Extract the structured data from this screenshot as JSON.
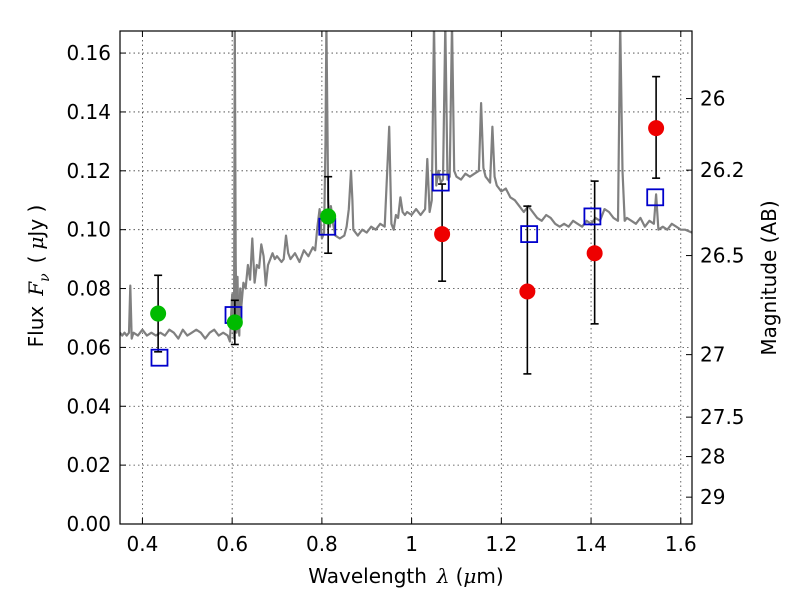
{
  "chart_data": {
    "type": "scatter",
    "title": "",
    "xlabel_text": "Wavelength",
    "xlabel_symbol": "λ",
    "xlabel_unit_open": "(",
    "xlabel_unit_mu": "μ",
    "xlabel_unit_rest": "m)",
    "ylabel_text": "Flux",
    "ylabel_symbol": "F",
    "ylabel_subscript": "ν",
    "ylabel_unit_open": "(",
    "ylabel_unit_mu": "μ",
    "ylabel_unit_rest": "Jy )",
    "y2label": "Magnitude (AB)",
    "xlim": [
      0.35,
      1.625
    ],
    "ylim": [
      0.0,
      0.1675
    ],
    "grid": true,
    "x_ticks": [
      0.4,
      0.6,
      0.8,
      1.0,
      1.2,
      1.4,
      1.6
    ],
    "x_tick_labels": [
      "0.4",
      "0.6",
      "0.8",
      "1",
      "1.2",
      "1.4",
      "1.6"
    ],
    "y_ticks": [
      0.0,
      0.02,
      0.04,
      0.06,
      0.08,
      0.1,
      0.12,
      0.14,
      0.16
    ],
    "y_tick_labels": [
      "0.00",
      "0.02",
      "0.04",
      "0.06",
      "0.08",
      "0.10",
      "0.12",
      "0.14",
      "0.16"
    ],
    "y2_ticks": [
      26,
      26.2,
      26.5,
      27,
      27.5,
      28,
      29
    ],
    "y2_tick_labels": [
      "26",
      "26.2",
      "26.5",
      "27",
      "27.5",
      "28",
      "29"
    ],
    "colors": {
      "spectrum": "#808080",
      "green": "#00bb00",
      "red": "#ee0000",
      "square": "#0000cc",
      "errorbar": "#000000"
    },
    "spectrum": [
      [
        0.35,
        0.065
      ],
      [
        0.355,
        0.064
      ],
      [
        0.36,
        0.065
      ],
      [
        0.365,
        0.064
      ],
      [
        0.37,
        0.065
      ],
      [
        0.373,
        0.081
      ],
      [
        0.376,
        0.063
      ],
      [
        0.38,
        0.065
      ],
      [
        0.39,
        0.064
      ],
      [
        0.4,
        0.066
      ],
      [
        0.41,
        0.064
      ],
      [
        0.42,
        0.065
      ],
      [
        0.43,
        0.064
      ],
      [
        0.44,
        0.065
      ],
      [
        0.45,
        0.064
      ],
      [
        0.46,
        0.066
      ],
      [
        0.47,
        0.065
      ],
      [
        0.48,
        0.063
      ],
      [
        0.49,
        0.066
      ],
      [
        0.5,
        0.064
      ],
      [
        0.51,
        0.065
      ],
      [
        0.52,
        0.066
      ],
      [
        0.53,
        0.065
      ],
      [
        0.54,
        0.063
      ],
      [
        0.55,
        0.065
      ],
      [
        0.56,
        0.066
      ],
      [
        0.57,
        0.064
      ],
      [
        0.58,
        0.065
      ],
      [
        0.59,
        0.064
      ],
      [
        0.595,
        0.062
      ],
      [
        0.598,
        0.072
      ],
      [
        0.6,
        0.078
      ],
      [
        0.602,
        0.07
      ],
      [
        0.604,
        0.063
      ],
      [
        0.606,
        0.17
      ],
      [
        0.608,
        0.09
      ],
      [
        0.61,
        0.065
      ],
      [
        0.612,
        0.084
      ],
      [
        0.614,
        0.068
      ],
      [
        0.616,
        0.064
      ],
      [
        0.618,
        0.08
      ],
      [
        0.62,
        0.073
      ],
      [
        0.625,
        0.082
      ],
      [
        0.63,
        0.08
      ],
      [
        0.635,
        0.088
      ],
      [
        0.64,
        0.083
      ],
      [
        0.645,
        0.097
      ],
      [
        0.65,
        0.082
      ],
      [
        0.655,
        0.088
      ],
      [
        0.66,
        0.087
      ],
      [
        0.665,
        0.095
      ],
      [
        0.67,
        0.091
      ],
      [
        0.675,
        0.081
      ],
      [
        0.68,
        0.088
      ],
      [
        0.685,
        0.09
      ],
      [
        0.69,
        0.092
      ],
      [
        0.695,
        0.09
      ],
      [
        0.7,
        0.091
      ],
      [
        0.71,
        0.089
      ],
      [
        0.715,
        0.09
      ],
      [
        0.72,
        0.098
      ],
      [
        0.725,
        0.092
      ],
      [
        0.73,
        0.09
      ],
      [
        0.74,
        0.092
      ],
      [
        0.75,
        0.089
      ],
      [
        0.76,
        0.093
      ],
      [
        0.77,
        0.091
      ],
      [
        0.78,
        0.094
      ],
      [
        0.785,
        0.093
      ],
      [
        0.79,
        0.101
      ],
      [
        0.795,
        0.107
      ],
      [
        0.8,
        0.097
      ],
      [
        0.805,
        0.099
      ],
      [
        0.808,
        0.13
      ],
      [
        0.81,
        0.17
      ],
      [
        0.812,
        0.14
      ],
      [
        0.814,
        0.11
      ],
      [
        0.818,
        0.101
      ],
      [
        0.82,
        0.108
      ],
      [
        0.825,
        0.102
      ],
      [
        0.83,
        0.098
      ],
      [
        0.84,
        0.097
      ],
      [
        0.85,
        0.098
      ],
      [
        0.855,
        0.101
      ],
      [
        0.86,
        0.107
      ],
      [
        0.865,
        0.12
      ],
      [
        0.868,
        0.11
      ],
      [
        0.87,
        0.1
      ],
      [
        0.88,
        0.098
      ],
      [
        0.89,
        0.1
      ],
      [
        0.9,
        0.099
      ],
      [
        0.91,
        0.101
      ],
      [
        0.92,
        0.1
      ],
      [
        0.93,
        0.102
      ],
      [
        0.94,
        0.101
      ],
      [
        0.95,
        0.135
      ],
      [
        0.955,
        0.102
      ],
      [
        0.96,
        0.1
      ],
      [
        0.965,
        0.105
      ],
      [
        0.97,
        0.104
      ],
      [
        0.975,
        0.111
      ],
      [
        0.98,
        0.106
      ],
      [
        0.985,
        0.105
      ],
      [
        0.99,
        0.106
      ],
      [
        1.0,
        0.105
      ],
      [
        1.01,
        0.107
      ],
      [
        1.02,
        0.105
      ],
      [
        1.03,
        0.107
      ],
      [
        1.035,
        0.124
      ],
      [
        1.04,
        0.106
      ],
      [
        1.045,
        0.11
      ],
      [
        1.05,
        0.17
      ],
      [
        1.055,
        0.115
      ],
      [
        1.06,
        0.12
      ],
      [
        1.065,
        0.116
      ],
      [
        1.07,
        0.117
      ],
      [
        1.075,
        0.17
      ],
      [
        1.08,
        0.117
      ],
      [
        1.085,
        0.118
      ],
      [
        1.09,
        0.17
      ],
      [
        1.095,
        0.12
      ],
      [
        1.1,
        0.118
      ],
      [
        1.11,
        0.117
      ],
      [
        1.12,
        0.119
      ],
      [
        1.13,
        0.118
      ],
      [
        1.14,
        0.119
      ],
      [
        1.15,
        0.12
      ],
      [
        1.155,
        0.143
      ],
      [
        1.16,
        0.121
      ],
      [
        1.165,
        0.118
      ],
      [
        1.17,
        0.117
      ],
      [
        1.175,
        0.116
      ],
      [
        1.18,
        0.135
      ],
      [
        1.185,
        0.118
      ],
      [
        1.19,
        0.115
      ],
      [
        1.2,
        0.113
      ],
      [
        1.21,
        0.114
      ],
      [
        1.22,
        0.111
      ],
      [
        1.23,
        0.11
      ],
      [
        1.24,
        0.108
      ],
      [
        1.25,
        0.106
      ],
      [
        1.26,
        0.108
      ],
      [
        1.27,
        0.106
      ],
      [
        1.28,
        0.104
      ],
      [
        1.29,
        0.103
      ],
      [
        1.3,
        0.105
      ],
      [
        1.31,
        0.104
      ],
      [
        1.32,
        0.102
      ],
      [
        1.33,
        0.101
      ],
      [
        1.34,
        0.102
      ],
      [
        1.35,
        0.101
      ],
      [
        1.36,
        0.103
      ],
      [
        1.37,
        0.102
      ],
      [
        1.38,
        0.101
      ],
      [
        1.39,
        0.103
      ],
      [
        1.4,
        0.102
      ],
      [
        1.41,
        0.104
      ],
      [
        1.42,
        0.103
      ],
      [
        1.43,
        0.107
      ],
      [
        1.44,
        0.106
      ],
      [
        1.45,
        0.104
      ],
      [
        1.46,
        0.103
      ],
      [
        1.465,
        0.17
      ],
      [
        1.47,
        0.12
      ],
      [
        1.475,
        0.103
      ],
      [
        1.48,
        0.104
      ],
      [
        1.49,
        0.103
      ],
      [
        1.5,
        0.102
      ],
      [
        1.51,
        0.104
      ],
      [
        1.52,
        0.101
      ],
      [
        1.53,
        0.103
      ],
      [
        1.54,
        0.102
      ],
      [
        1.545,
        0.112
      ],
      [
        1.55,
        0.1
      ],
      [
        1.56,
        0.101
      ],
      [
        1.57,
        0.1
      ],
      [
        1.58,
        0.102
      ],
      [
        1.59,
        0.101
      ],
      [
        1.6,
        0.1
      ],
      [
        1.61,
        0.1
      ],
      [
        1.625,
        0.099
      ]
    ],
    "green_points": [
      {
        "x": 0.435,
        "y": 0.0715,
        "yerr_lo": 0.0585,
        "yerr_hi": 0.0845
      },
      {
        "x": 0.606,
        "y": 0.0685,
        "yerr_lo": 0.061,
        "yerr_hi": 0.076
      },
      {
        "x": 0.814,
        "y": 0.1045,
        "yerr_lo": 0.092,
        "yerr_hi": 0.118
      }
    ],
    "red_points": [
      {
        "x": 1.068,
        "y": 0.0985,
        "yerr_lo": 0.0825,
        "yerr_hi": 0.1155
      },
      {
        "x": 1.258,
        "y": 0.079,
        "yerr_lo": 0.051,
        "yerr_hi": 0.108
      },
      {
        "x": 1.408,
        "y": 0.092,
        "yerr_lo": 0.068,
        "yerr_hi": 0.1165
      },
      {
        "x": 1.545,
        "y": 0.1345,
        "yerr_lo": 0.1175,
        "yerr_hi": 0.152
      }
    ],
    "model_squares": [
      {
        "x": 0.438,
        "y": 0.0565
      },
      {
        "x": 0.603,
        "y": 0.071
      },
      {
        "x": 0.812,
        "y": 0.101
      },
      {
        "x": 1.065,
        "y": 0.116
      },
      {
        "x": 1.262,
        "y": 0.0985
      },
      {
        "x": 1.403,
        "y": 0.1045
      },
      {
        "x": 1.543,
        "y": 0.111
      }
    ]
  }
}
